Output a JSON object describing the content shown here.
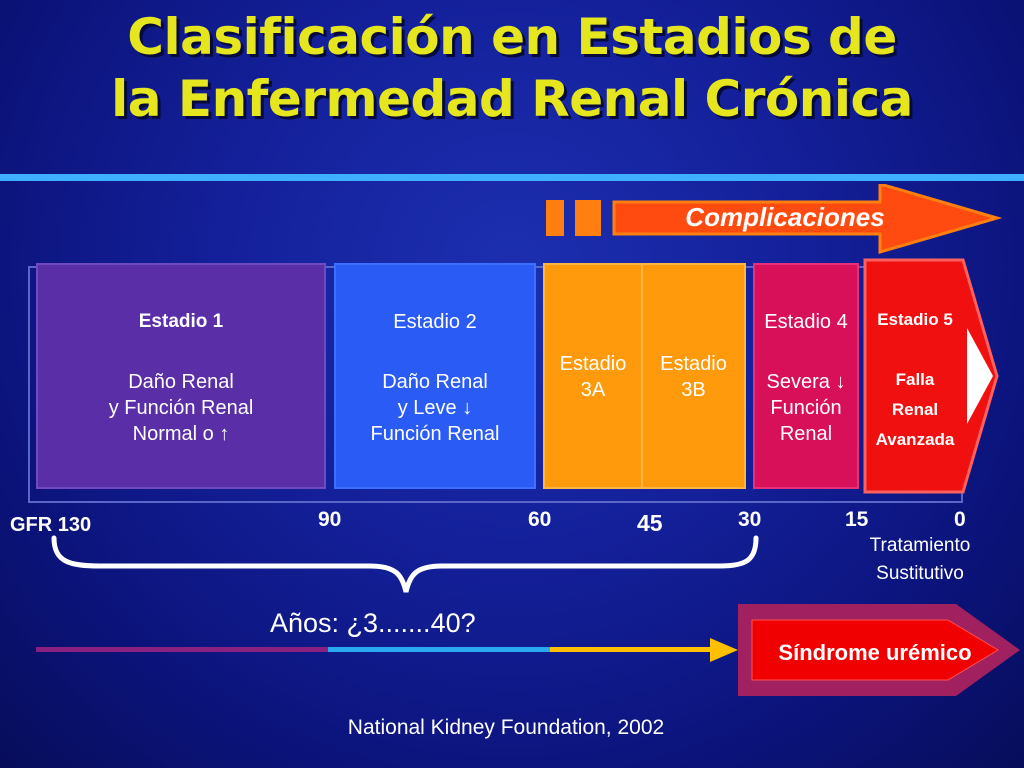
{
  "title": {
    "line1": "Clasificación en Estadios de",
    "line2": "la Enfermedad Renal Crónica"
  },
  "complications": {
    "label": "Complicaciones"
  },
  "stages": [
    {
      "name": "Estadio 1",
      "l1": "Daño Renal",
      "l2": "y Función Renal",
      "l3": "Normal o ↑",
      "color": "#5a2ea6"
    },
    {
      "name": "Estadio 2",
      "l1": "Daño Renal",
      "l2": "y Leve ↓",
      "l3": "Función Renal",
      "color": "#2a5cf5"
    },
    {
      "name_a": "Estadio",
      "name_b": "3A",
      "color": "#ff9a0c"
    },
    {
      "name_a": "Estadio",
      "name_b": "3B",
      "color": "#ff9a0c"
    },
    {
      "name": "Estadio 4",
      "l1": "Severa ↓",
      "l2": "Función",
      "l3": "Renal",
      "color": "#d8105a"
    },
    {
      "name": "Estadio 5",
      "l1": "Falla",
      "l2": "Renal",
      "l3": "Avanzada",
      "color": "#f01010"
    }
  ],
  "gfr": {
    "label": "GFR 130",
    "ticks": [
      "90",
      "60",
      "45",
      "30",
      "15",
      "0"
    ]
  },
  "treatment": {
    "line1": "Tratamiento",
    "line2": "Sustitutivo"
  },
  "years": "Años: ¿3.......40?",
  "syndrome": "Síndrome urémico",
  "source": "National Kidney Foundation, 2002"
}
